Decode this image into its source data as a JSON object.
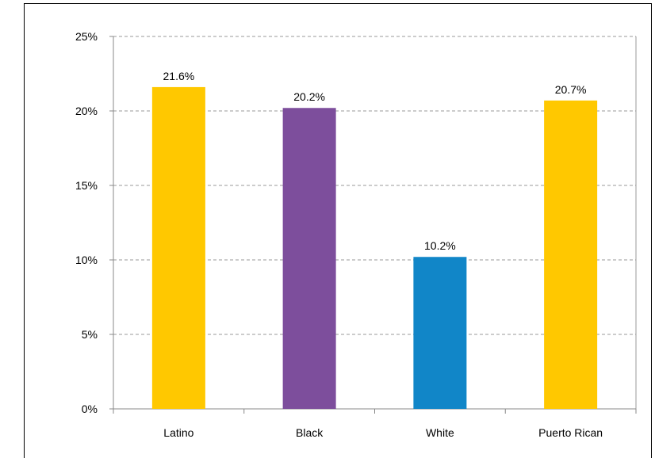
{
  "chart_data": {
    "type": "bar",
    "categories": [
      "Latino",
      "Black",
      "White",
      "Puerto Rican"
    ],
    "values": [
      21.6,
      20.2,
      10.2,
      20.7
    ],
    "data_labels": [
      "21.6%",
      "20.2%",
      "10.2%",
      "20.7%"
    ],
    "colors": [
      "#FFC800",
      "#7D4E9C",
      "#1186C8",
      "#FFC800"
    ],
    "ylim": [
      0,
      25
    ],
    "yticks": [
      0,
      5,
      10,
      15,
      20,
      25
    ],
    "ytick_labels": [
      "0%",
      "5%",
      "10%",
      "15%",
      "20%",
      "25%"
    ],
    "grid": true,
    "title": "",
    "xlabel": "",
    "ylabel": ""
  }
}
